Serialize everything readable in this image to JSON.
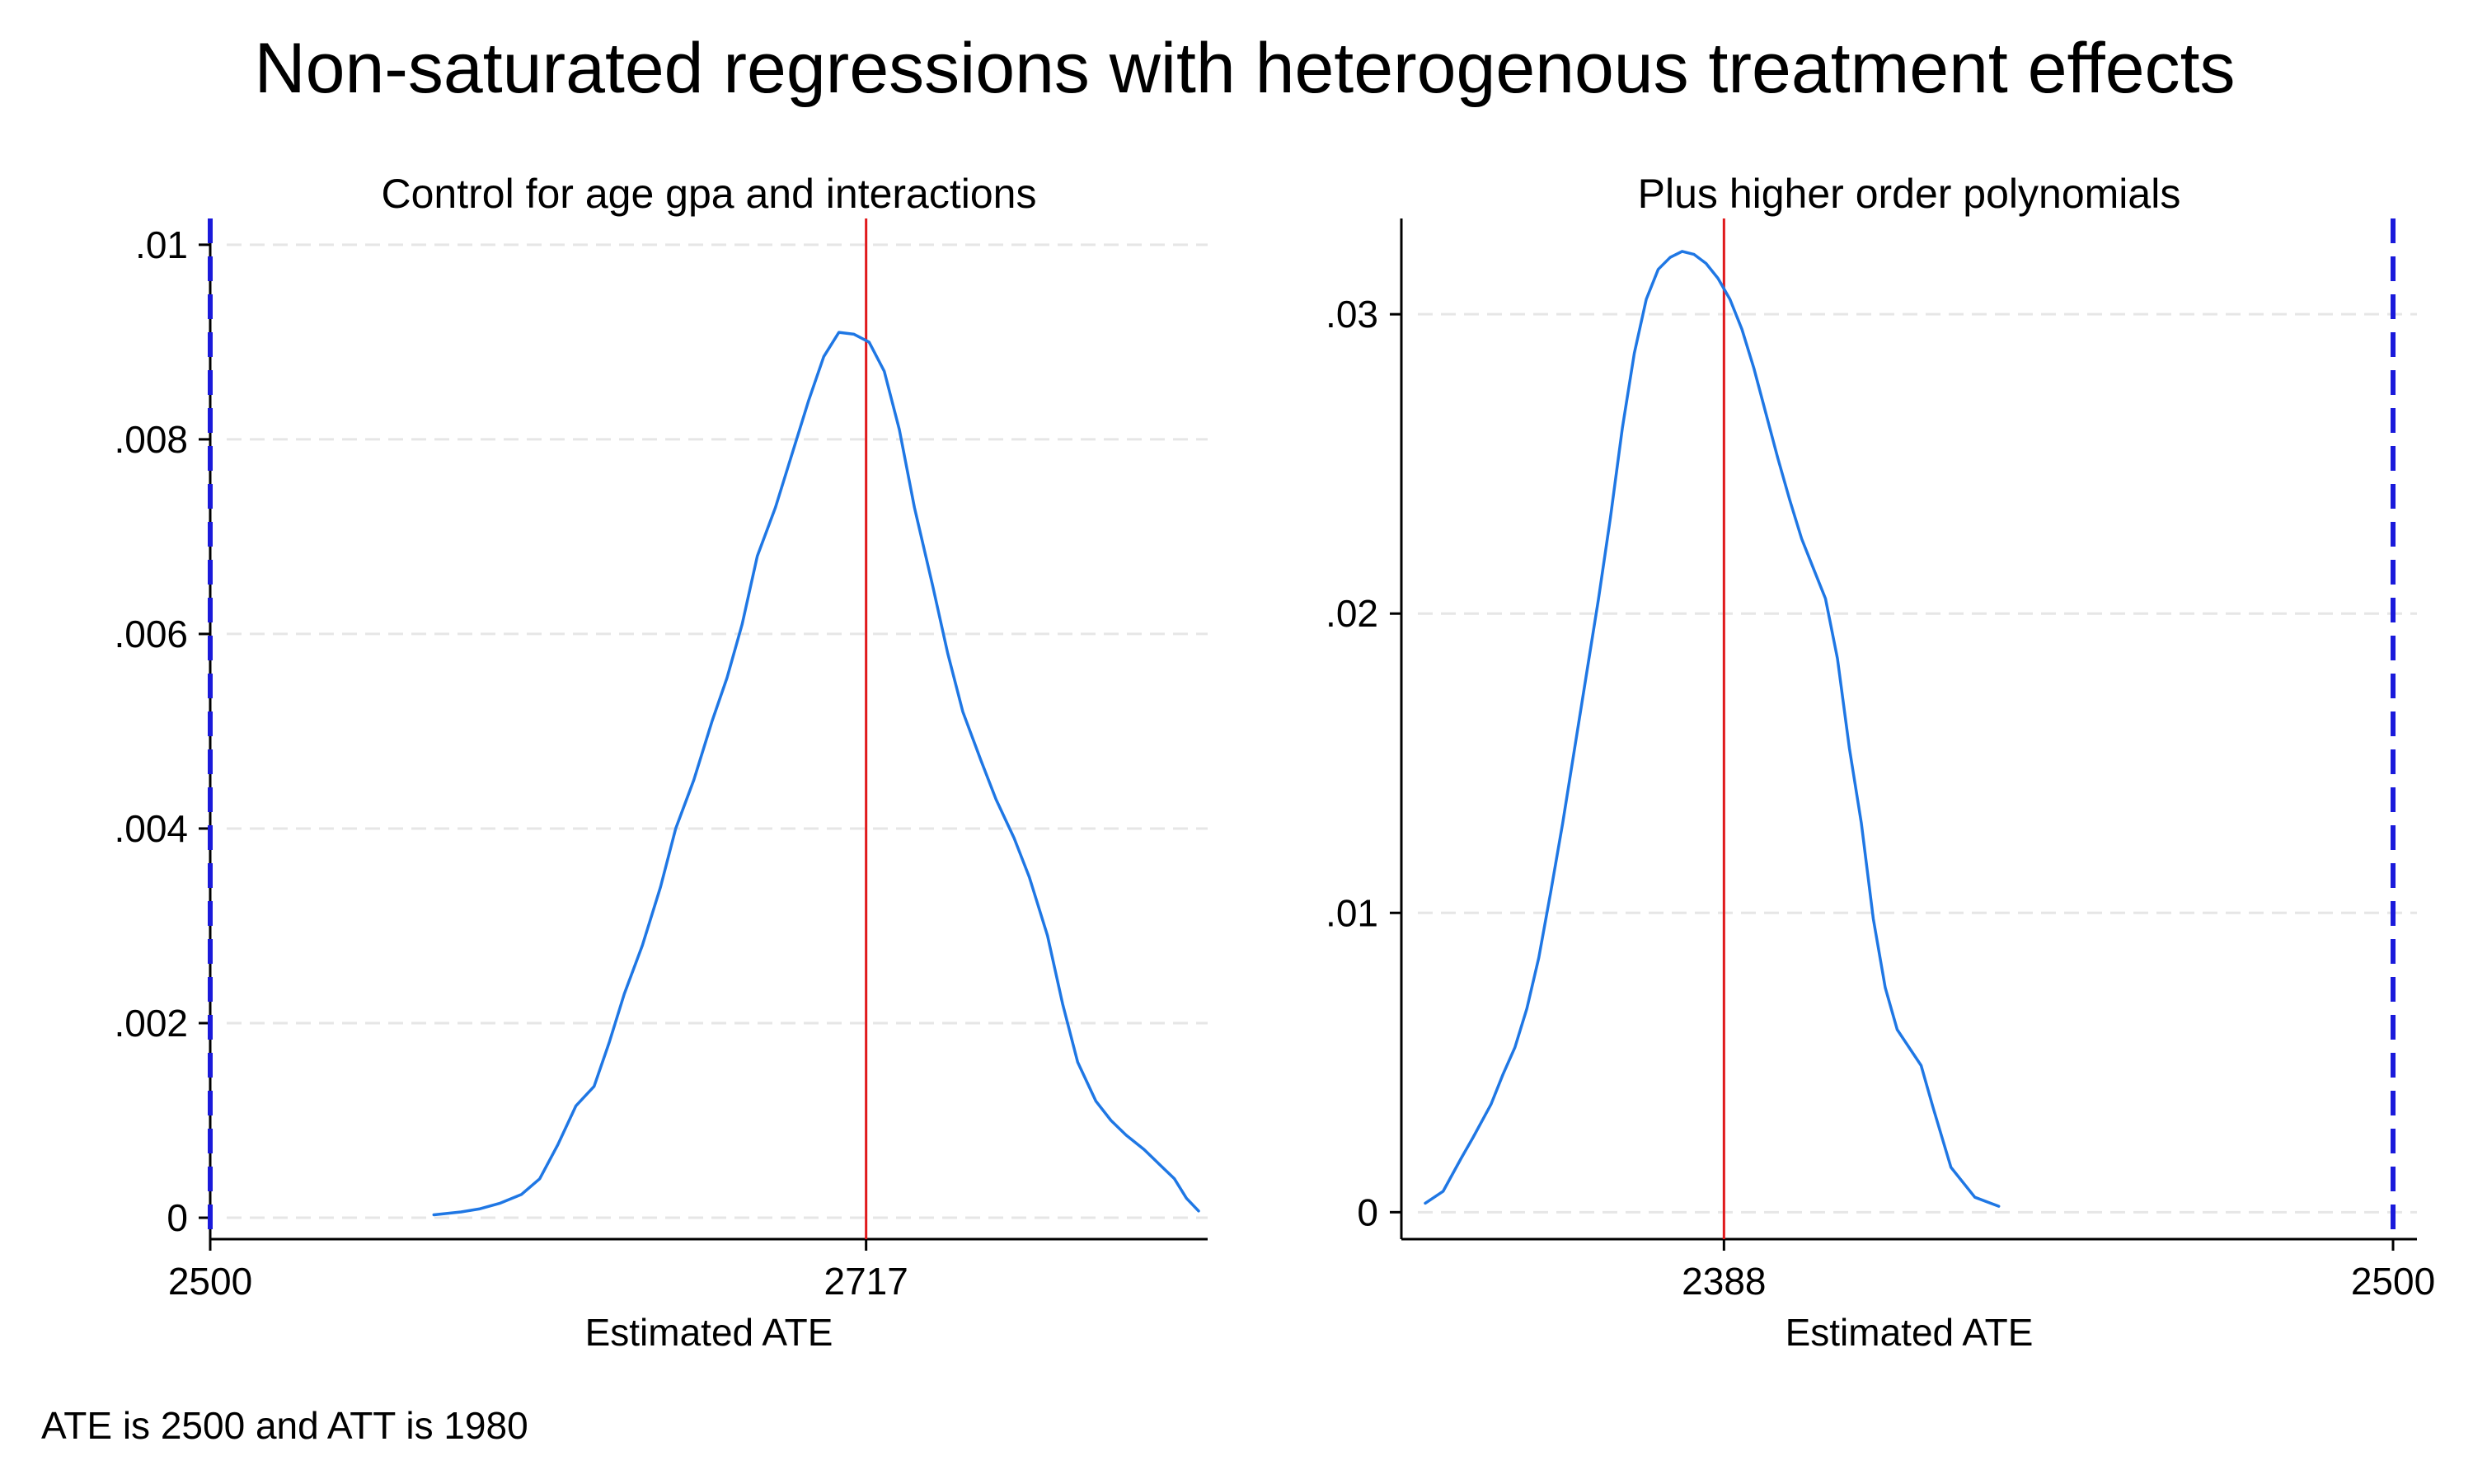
{
  "figure": {
    "title": "Non-saturated regressions with heterogenous treatment effects",
    "note": "ATE is 2500 and ATT is 1980"
  },
  "colors": {
    "density_line": "#1f77e4",
    "estimate_line": "#e0191b",
    "true_ate_line": "#1a1adb",
    "grid": "#e6e6e6",
    "axis": "#000000"
  },
  "chart_data": [
    {
      "type": "line",
      "title": "Control for age gpa and interactions",
      "xlabel": "Estimated ATE",
      "ylabel": "",
      "xlim": [
        2500,
        2830
      ],
      "ylim": [
        -0.00022,
        0.01027
      ],
      "yticks": [
        0,
        0.002,
        0.004,
        0.006,
        0.008,
        0.01
      ],
      "ytick_labels": [
        "0",
        ".002",
        ".004",
        ".006",
        ".008",
        ".01"
      ],
      "xticks": [
        2500,
        2717
      ],
      "xtick_labels": [
        "2500",
        "2717"
      ],
      "grid": true,
      "legend": "none",
      "series": [
        {
          "x": [
            2574,
            2583,
            2589,
            2596,
            2603,
            2609,
            2615,
            2621,
            2627,
            2632,
            2637,
            2643,
            2649,
            2654,
            2660,
            2666,
            2671,
            2676,
            2681,
            2687,
            2692,
            2698,
            2703,
            2708,
            2713,
            2718,
            2723,
            2728,
            2733,
            2739,
            2744,
            2749,
            2755,
            2760,
            2766,
            2771,
            2777,
            2782,
            2787,
            2793,
            2798,
            2803,
            2809,
            2814,
            2819,
            2823,
            2827
          ],
          "y": [
            3e-05,
            6e-05,
            9e-05,
            0.00015,
            0.00024,
            0.0004,
            0.00075,
            0.00115,
            0.00135,
            0.0018,
            0.0023,
            0.0028,
            0.0034,
            0.004,
            0.0045,
            0.0051,
            0.00555,
            0.0061,
            0.0068,
            0.0073,
            0.0078,
            0.0084,
            0.00885,
            0.0091,
            0.00908,
            0.009,
            0.0087,
            0.0081,
            0.0073,
            0.0065,
            0.0058,
            0.0052,
            0.0047,
            0.0043,
            0.0039,
            0.0035,
            0.0029,
            0.0022,
            0.0016,
            0.0012,
            0.001,
            0.00085,
            0.0007,
            0.00055,
            0.0004,
            0.0002,
            7e-05
          ]
        }
      ],
      "vlines": [
        {
          "name": "estimate",
          "x": 2717,
          "style": "solid"
        },
        {
          "name": "true_ate",
          "x": 2500,
          "style": "dashed"
        }
      ]
    },
    {
      "type": "line",
      "title": "Plus higher order polynomials",
      "xlabel": "Estimated ATE",
      "ylabel": "",
      "xlim": [
        2334,
        2504
      ],
      "ylim": [
        -0.0009,
        0.0332
      ],
      "yticks": [
        0,
        0.01,
        0.02,
        0.03
      ],
      "ytick_labels": [
        "0",
        ".01",
        ".02",
        ".03"
      ],
      "xticks": [
        2388,
        2500
      ],
      "xtick_labels": [
        "2388",
        "2500"
      ],
      "grid": true,
      "legend": "none",
      "series": [
        {
          "x": [
            2338,
            2341,
            2344,
            2346,
            2349,
            2351,
            2353,
            2355,
            2357,
            2359,
            2361,
            2363,
            2365,
            2367,
            2369,
            2371,
            2373,
            2375,
            2377,
            2379,
            2381,
            2383,
            2385,
            2387,
            2389,
            2391,
            2393,
            2395,
            2397,
            2399,
            2401,
            2403,
            2405,
            2407,
            2409,
            2411,
            2413,
            2415,
            2417,
            2419,
            2421,
            2423,
            2426,
            2430,
            2434
          ],
          "y": [
            0.0003,
            0.0007,
            0.0018,
            0.0025,
            0.0036,
            0.0046,
            0.0055,
            0.0068,
            0.0085,
            0.0107,
            0.013,
            0.0155,
            0.018,
            0.0205,
            0.0232,
            0.0262,
            0.0287,
            0.0305,
            0.0315,
            0.0319,
            0.0321,
            0.032,
            0.0317,
            0.0312,
            0.0305,
            0.0295,
            0.0282,
            0.0267,
            0.0252,
            0.0238,
            0.0225,
            0.0215,
            0.0205,
            0.0185,
            0.0155,
            0.013,
            0.0098,
            0.0075,
            0.0061,
            0.0055,
            0.0049,
            0.0035,
            0.0015,
            0.0005,
            0.0002
          ]
        }
      ],
      "vlines": [
        {
          "name": "estimate",
          "x": 2388,
          "style": "solid"
        },
        {
          "name": "true_ate",
          "x": 2500,
          "style": "dashed"
        }
      ]
    }
  ]
}
